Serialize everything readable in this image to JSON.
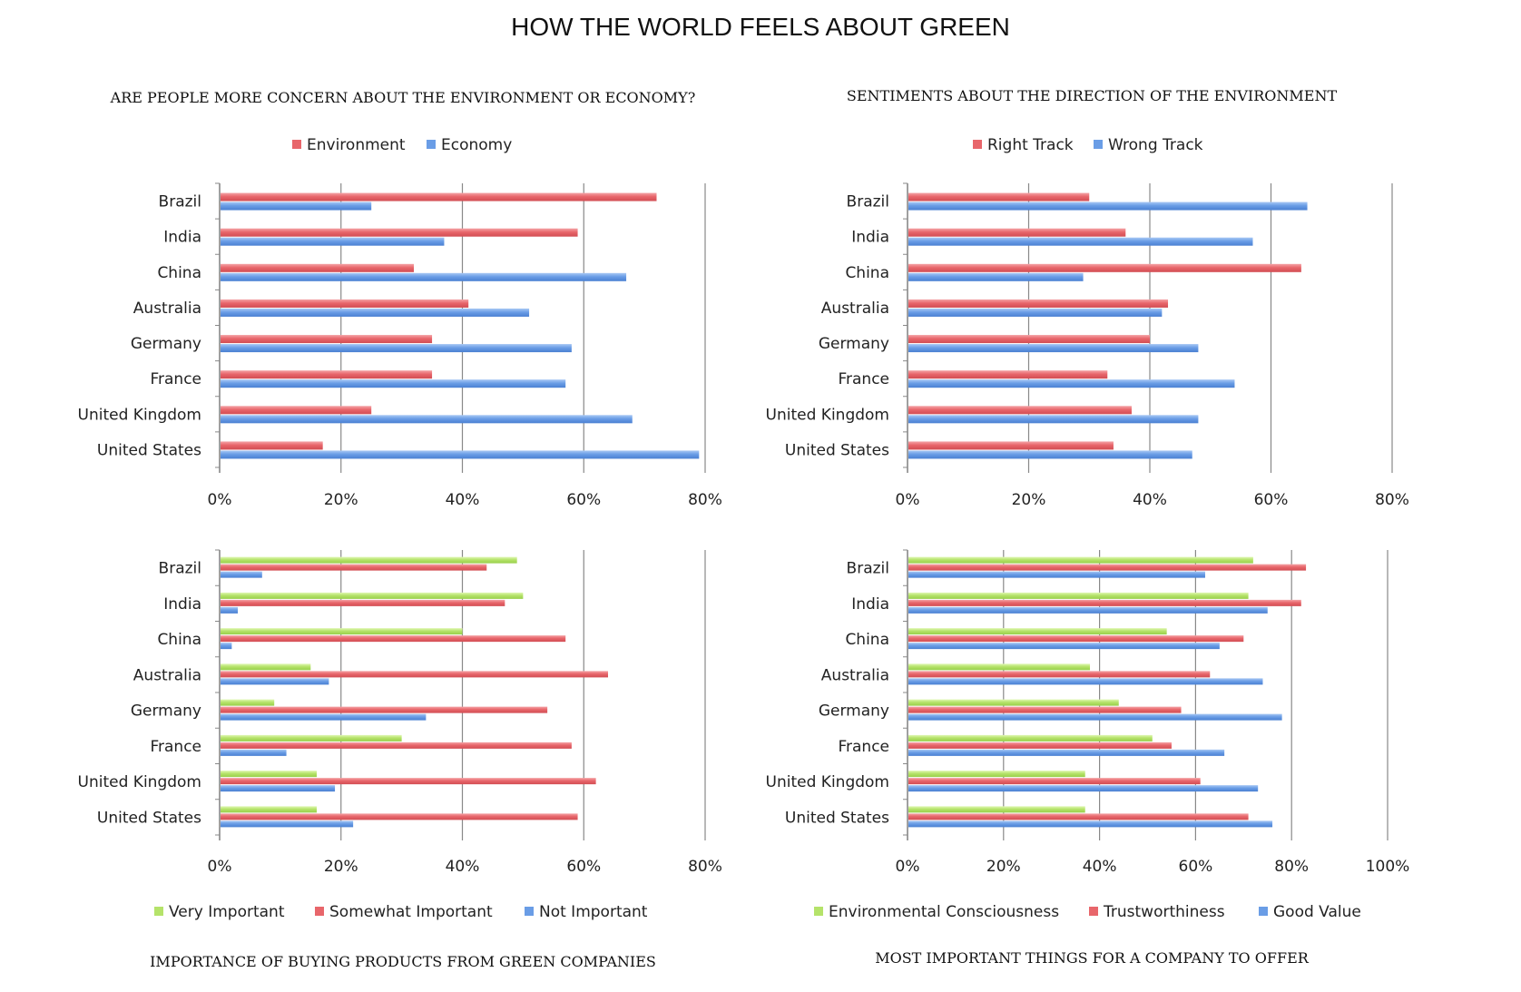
{
  "page_title": "HOW THE WORLD FEELS ABOUT GREEN",
  "chart_data": [
    {
      "type": "bar",
      "orientation": "horizontal",
      "title": "ARE PEOPLE MORE CONCERN ABOUT THE ENVIRONMENT OR ECONOMY?",
      "categories": [
        "Brazil",
        "India",
        "China",
        "Australia",
        "Germany",
        "France",
        "United Kingdom",
        "United States"
      ],
      "series": [
        {
          "name": "Environment",
          "color": "#e8666b",
          "values": [
            72,
            59,
            32,
            41,
            35,
            35,
            25,
            17
          ]
        },
        {
          "name": "Economy",
          "color": "#6a9de6",
          "values": [
            25,
            37,
            67,
            51,
            58,
            57,
            68,
            79
          ]
        }
      ],
      "xlim": [
        0,
        80
      ],
      "xticks": [
        "0%",
        "20%",
        "40%",
        "60%",
        "80%"
      ],
      "grid": true,
      "legend_position": "top"
    },
    {
      "type": "bar",
      "orientation": "horizontal",
      "title": "SENTIMENTS ABOUT THE DIRECTION OF THE ENVIRONMENT",
      "categories": [
        "Brazil",
        "India",
        "China",
        "Australia",
        "Germany",
        "France",
        "United Kingdom",
        "United States"
      ],
      "series": [
        {
          "name": "Right Track",
          "color": "#e8666b",
          "values": [
            30,
            36,
            65,
            43,
            40,
            33,
            37,
            34
          ]
        },
        {
          "name": "Wrong Track",
          "color": "#6a9de6",
          "values": [
            66,
            57,
            29,
            42,
            48,
            54,
            48,
            47
          ]
        }
      ],
      "xlim": [
        0,
        80
      ],
      "xticks": [
        "0%",
        "20%",
        "40%",
        "60%",
        "80%"
      ],
      "grid": true,
      "legend_position": "top"
    },
    {
      "type": "bar",
      "orientation": "horizontal",
      "title": "IMPORTANCE OF BUYING PRODUCTS FROM GREEN COMPANIES",
      "categories": [
        "Brazil",
        "India",
        "China",
        "Australia",
        "Germany",
        "France",
        "United Kingdom",
        "United States"
      ],
      "series": [
        {
          "name": "Very Important",
          "color": "#b5e36a",
          "values": [
            49,
            50,
            40,
            15,
            9,
            30,
            16,
            16
          ]
        },
        {
          "name": "Somewhat Important",
          "color": "#e8666b",
          "values": [
            44,
            47,
            57,
            64,
            54,
            58,
            62,
            59
          ]
        },
        {
          "name": "Not Important",
          "color": "#6a9de6",
          "values": [
            7,
            3,
            2,
            18,
            34,
            11,
            19,
            22
          ]
        }
      ],
      "xlim": [
        0,
        80
      ],
      "xticks": [
        "0%",
        "20%",
        "40%",
        "60%",
        "80%"
      ],
      "grid": true,
      "legend_position": "bottom"
    },
    {
      "type": "bar",
      "orientation": "horizontal",
      "title": "MOST IMPORTANT THINGS FOR A COMPANY TO OFFER",
      "categories": [
        "Brazil",
        "India",
        "China",
        "Australia",
        "Germany",
        "France",
        "United Kingdom",
        "United States"
      ],
      "series": [
        {
          "name": "Environmental Consciousness",
          "color": "#b5e36a",
          "values": [
            72,
            71,
            54,
            38,
            44,
            51,
            37,
            37
          ]
        },
        {
          "name": "Trustworthiness",
          "color": "#e8666b",
          "values": [
            83,
            82,
            70,
            63,
            57,
            55,
            61,
            71
          ]
        },
        {
          "name": "Good Value",
          "color": "#6a9de6",
          "values": [
            62,
            75,
            65,
            74,
            78,
            66,
            73,
            76
          ]
        }
      ],
      "xlim": [
        0,
        100
      ],
      "xticks": [
        "0%",
        "20%",
        "40%",
        "60%",
        "80%",
        "100%"
      ],
      "grid": true,
      "legend_position": "bottom"
    }
  ]
}
